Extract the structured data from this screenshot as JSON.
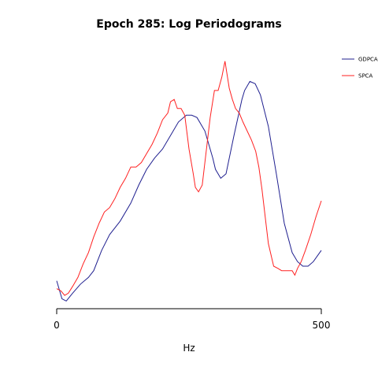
{
  "chart_data": {
    "type": "line",
    "title": "Epoch 285: Log Periodograms",
    "xlabel": "Hz",
    "ylabel": "",
    "xlim": [
      0,
      500
    ],
    "ylim": [
      0,
      1
    ],
    "x_ticks": [
      {
        "value": 0,
        "label": "0"
      },
      {
        "value": 500,
        "label": "500"
      }
    ],
    "legend": {
      "placement": "top-right"
    },
    "grid": false,
    "series": [
      {
        "name": "GDPCA",
        "color": "#1f1f8f",
        "x": [
          0,
          10,
          18,
          30,
          45,
          60,
          70,
          85,
          100,
          120,
          140,
          155,
          170,
          185,
          200,
          215,
          230,
          245,
          255,
          265,
          280,
          295,
          300,
          310,
          320,
          335,
          350,
          355,
          365,
          375,
          385,
          400,
          415,
          430,
          445,
          455,
          465,
          475,
          485,
          500
        ],
        "y": [
          0.075,
          -0.005,
          -0.015,
          0.02,
          0.06,
          0.09,
          0.12,
          0.21,
          0.28,
          0.34,
          0.42,
          0.5,
          0.57,
          0.62,
          0.66,
          0.72,
          0.78,
          0.81,
          0.81,
          0.8,
          0.74,
          0.62,
          0.57,
          0.53,
          0.55,
          0.72,
          0.88,
          0.92,
          0.96,
          0.95,
          0.9,
          0.76,
          0.55,
          0.33,
          0.2,
          0.16,
          0.14,
          0.14,
          0.16,
          0.21
        ]
      },
      {
        "name": "SPCA",
        "color": "#ff2020",
        "x": [
          0,
          8,
          15,
          22,
          30,
          40,
          50,
          60,
          70,
          80,
          90,
          100,
          110,
          120,
          130,
          140,
          150,
          160,
          170,
          180,
          190,
          200,
          210,
          215,
          222,
          228,
          235,
          242,
          250,
          258,
          262,
          268,
          275,
          282,
          290,
          298,
          305,
          312,
          318,
          322,
          326,
          332,
          338,
          345,
          352,
          360,
          368,
          376,
          382,
          388,
          395,
          400,
          410,
          418,
          425,
          435,
          445,
          450,
          455,
          462,
          470,
          480,
          490,
          500
        ],
        "y": [
          0.04,
          0.03,
          0.01,
          0.02,
          0.05,
          0.09,
          0.15,
          0.2,
          0.27,
          0.33,
          0.38,
          0.4,
          0.44,
          0.49,
          0.53,
          0.58,
          0.58,
          0.6,
          0.64,
          0.68,
          0.73,
          0.79,
          0.82,
          0.87,
          0.88,
          0.84,
          0.84,
          0.81,
          0.66,
          0.55,
          0.49,
          0.47,
          0.5,
          0.64,
          0.8,
          0.92,
          0.92,
          0.98,
          1.05,
          0.99,
          0.93,
          0.88,
          0.84,
          0.82,
          0.78,
          0.74,
          0.7,
          0.65,
          0.58,
          0.48,
          0.34,
          0.24,
          0.14,
          0.13,
          0.12,
          0.12,
          0.12,
          0.1,
          0.13,
          0.16,
          0.21,
          0.28,
          0.36,
          0.43
        ]
      }
    ]
  }
}
